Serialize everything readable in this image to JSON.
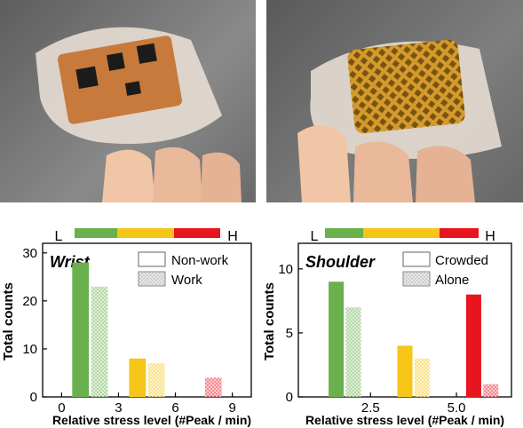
{
  "photos": {
    "left": {
      "subject": "flexible wristband sensor board on fingers"
    },
    "right": {
      "subject": "flexible patch with gold mesh electrode on fingers"
    }
  },
  "colors": {
    "green": "#6ab04c",
    "yellow": "#f5c518",
    "red": "#e8141e",
    "axis": "#000000"
  },
  "chart_data": [
    {
      "type": "bar",
      "panel_label": "Wrist",
      "scale": {
        "low_label": "L",
        "high_label": "H"
      },
      "xlabel": "Relative stress level (#Peak / min)",
      "ylabel": "Total counts",
      "xticks": [
        "0",
        "3",
        "6",
        "9"
      ],
      "xlim": [
        -1,
        10
      ],
      "yticks": [
        "0",
        "10",
        "20",
        "30"
      ],
      "ylim": [
        0,
        32
      ],
      "legend": {
        "position": "top-right"
      },
      "series": [
        {
          "name": "Non-work",
          "style": "solid"
        },
        {
          "name": "Work",
          "style": "hatched"
        }
      ],
      "bars": [
        {
          "series": "Non-work",
          "x": 1,
          "value": 28,
          "color": "green"
        },
        {
          "series": "Work",
          "x": 2,
          "value": 23,
          "color": "green"
        },
        {
          "series": "Non-work",
          "x": 4,
          "value": 8,
          "color": "yellow"
        },
        {
          "series": "Work",
          "x": 5,
          "value": 7,
          "color": "yellow"
        },
        {
          "series": "Work",
          "x": 8,
          "value": 4,
          "color": "red"
        }
      ]
    },
    {
      "type": "bar",
      "panel_label": "Shoulder",
      "scale": {
        "low_label": "L",
        "high_label": "H"
      },
      "xlabel": "Relative stress level (#Peak / min)",
      "ylabel": "Total counts",
      "xticks": [
        "2.5",
        "5.0"
      ],
      "xlim": [
        0.4,
        6.6
      ],
      "yticks": [
        "0",
        "5",
        "10"
      ],
      "ylim": [
        0,
        12
      ],
      "legend": {
        "position": "top-right"
      },
      "series": [
        {
          "name": "Crowded",
          "style": "solid"
        },
        {
          "name": "Alone",
          "style": "hatched"
        }
      ],
      "bars": [
        {
          "series": "Crowded",
          "x": 1.5,
          "value": 9,
          "color": "green"
        },
        {
          "series": "Alone",
          "x": 2.0,
          "value": 7,
          "color": "green"
        },
        {
          "series": "Crowded",
          "x": 3.5,
          "value": 4,
          "color": "yellow"
        },
        {
          "series": "Alone",
          "x": 4.0,
          "value": 3,
          "color": "yellow"
        },
        {
          "series": "Crowded",
          "x": 5.5,
          "value": 8,
          "color": "red"
        },
        {
          "series": "Alone",
          "x": 6.0,
          "value": 1,
          "color": "red"
        }
      ]
    }
  ]
}
